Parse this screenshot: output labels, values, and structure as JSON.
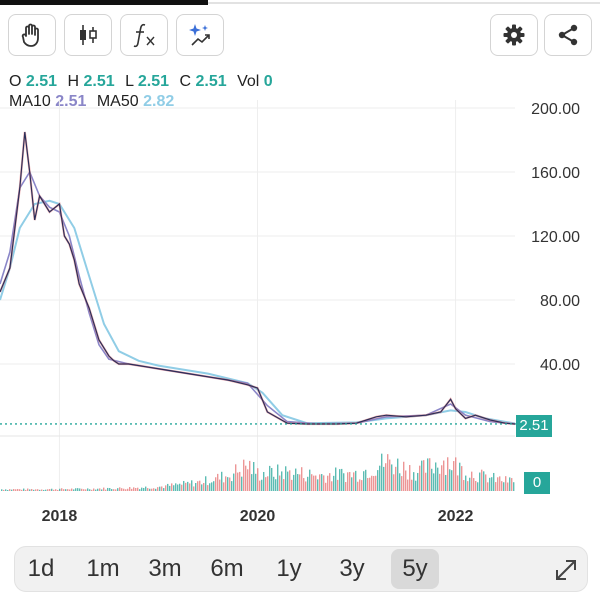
{
  "toolbar": {
    "left_icons": [
      "hand-icon",
      "candlestick-icon",
      "function-icon",
      "sparkle-chart-icon"
    ],
    "right_icons": [
      "gear-icon",
      "share-icon"
    ]
  },
  "ohlc": {
    "o_label": "O",
    "o": "2.51",
    "h_label": "H",
    "h": "2.51",
    "l_label": "L",
    "l": "2.51",
    "c_label": "C",
    "c": "2.51",
    "vol_label": "Vol",
    "vol": "0"
  },
  "ma": {
    "ma10_label": "MA10",
    "ma10": "2.51",
    "ma50_label": "MA50",
    "ma50": "2.82"
  },
  "price_tag": "2.51",
  "volume_tag": "0",
  "colors": {
    "accent_teal": "#26a69a",
    "price_line": "#2b2f5a",
    "down_candle": "#e57373",
    "ma10": "#8a86c8",
    "ma50": "#90cde6"
  },
  "chart_data": {
    "type": "line",
    "ylim": [
      0,
      200
    ],
    "y_ticks": [
      "200.00",
      "160.00",
      "120.00",
      "80.00",
      "40.00"
    ],
    "x_ticks": [
      "2018",
      "2020",
      "2022"
    ],
    "last_price": 2.51,
    "price": {
      "x": [
        2017.4,
        2017.5,
        2017.55,
        2017.6,
        2017.65,
        2017.7,
        2017.75,
        2017.8,
        2017.9,
        2018.0,
        2018.05,
        2018.1,
        2018.15,
        2018.2,
        2018.3,
        2018.4,
        2018.5,
        2018.55,
        2018.6,
        2018.7,
        2018.9,
        2019.1,
        2019.3,
        2019.5,
        2019.7,
        2019.9,
        2020.0,
        2020.1,
        2020.3,
        2020.5,
        2020.8,
        2021.0,
        2021.1,
        2021.2,
        2021.3,
        2021.5,
        2021.7,
        2021.85,
        2021.95,
        2022.0,
        2022.1,
        2022.2,
        2022.35,
        2022.5,
        2022.6
      ],
      "y": [
        85,
        100,
        125,
        150,
        185,
        160,
        130,
        145,
        135,
        140,
        120,
        115,
        105,
        90,
        75,
        55,
        45,
        42,
        40,
        40,
        38,
        36,
        34,
        32,
        30,
        27,
        25,
        10,
        3,
        2.5,
        2.5,
        3,
        5,
        7,
        8,
        7,
        8,
        10,
        18,
        12,
        6,
        8,
        5,
        3,
        2.51
      ]
    },
    "ma10": {
      "x": [
        2017.4,
        2017.5,
        2017.6,
        2017.7,
        2017.8,
        2017.9,
        2018.0,
        2018.1,
        2018.2,
        2018.3,
        2018.4,
        2018.5,
        2018.7,
        2019.0,
        2019.5,
        2019.9,
        2020.1,
        2020.3,
        2020.6,
        2021.0,
        2021.3,
        2021.7,
        2021.95,
        2022.1,
        2022.35,
        2022.6
      ],
      "y": [
        90,
        110,
        150,
        160,
        145,
        138,
        135,
        120,
        95,
        72,
        52,
        43,
        40,
        37,
        32,
        28,
        14,
        4,
        2.6,
        3,
        7,
        8,
        15,
        8,
        4,
        2.51
      ]
    },
    "ma50": {
      "x": [
        2017.4,
        2017.5,
        2017.6,
        2017.75,
        2017.9,
        2018.0,
        2018.15,
        2018.3,
        2018.45,
        2018.6,
        2018.8,
        2019.0,
        2019.5,
        2019.9,
        2020.05,
        2020.25,
        2020.5,
        2021.0,
        2021.3,
        2021.7,
        2021.95,
        2022.1,
        2022.3,
        2022.6
      ],
      "y": [
        80,
        100,
        125,
        140,
        142,
        140,
        125,
        95,
        65,
        48,
        42,
        39,
        34,
        28,
        22,
        8,
        3,
        3.5,
        6,
        8,
        11,
        10,
        6,
        2.82
      ]
    },
    "volume": {
      "x": [
        2017.4,
        2017.8,
        2018.2,
        2018.6,
        2019.0,
        2019.4,
        2019.7,
        2019.9,
        2020.0,
        2020.3,
        2020.6,
        2021.0,
        2021.3,
        2021.6,
        2021.9,
        2022.1,
        2022.3,
        2022.5
      ],
      "level": [
        0.05,
        0.05,
        0.06,
        0.08,
        0.12,
        0.25,
        0.45,
        0.75,
        0.5,
        0.55,
        0.45,
        0.5,
        0.85,
        0.55,
        0.9,
        0.55,
        0.4,
        0.3
      ]
    }
  },
  "range": {
    "items": [
      "1d",
      "1m",
      "3m",
      "6m",
      "1y",
      "3y",
      "5y"
    ],
    "active": "5y"
  }
}
